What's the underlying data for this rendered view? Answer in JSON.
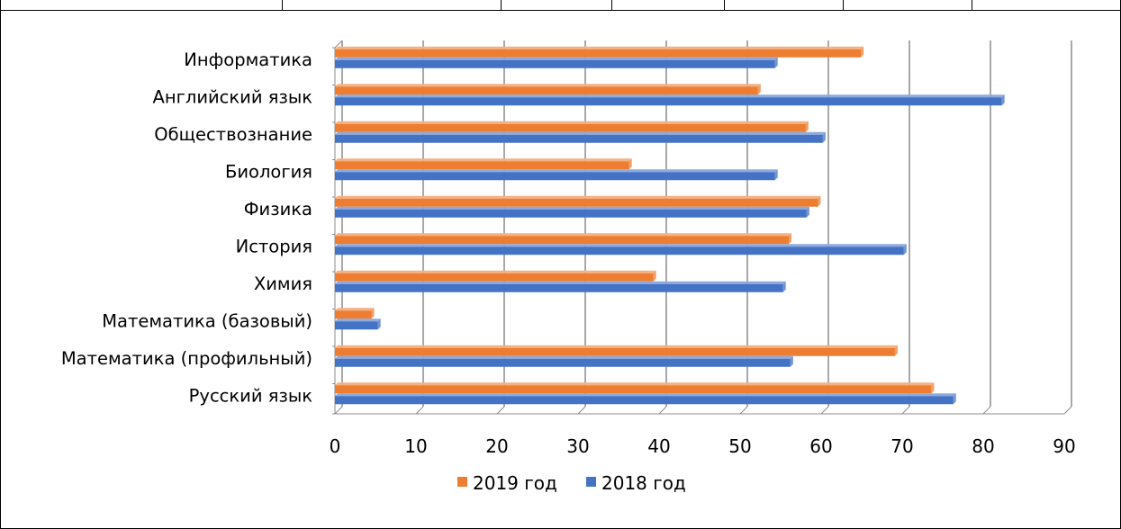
{
  "chart_data": {
    "type": "bar",
    "orientation": "horizontal",
    "categories": [
      "Русский язык",
      "Математика (профильный)",
      "Математика (базовый)",
      "Химия",
      "История",
      "Физика",
      "Биология",
      "Обществознание",
      "Английский язык",
      "Информатика"
    ],
    "series": [
      {
        "name": "2018 год",
        "color": "#4472c4",
        "values": [
          76.3,
          56.2,
          5.3,
          55.3,
          70.2,
          58.2,
          54.3,
          60.2,
          82.3,
          54.3
        ]
      },
      {
        "name": "2019 год",
        "color": "#ed7d31",
        "values": [
          73.6,
          69.1,
          4.5,
          39.3,
          56.0,
          59.6,
          36.3,
          58.1,
          52.2,
          64.9
        ]
      }
    ],
    "xticks": [
      "0",
      "10",
      "20",
      "30",
      "40",
      "50",
      "60",
      "70",
      "80",
      "90"
    ],
    "xlim": [
      0,
      90
    ],
    "grid": true,
    "legend": {
      "position": "bottom",
      "order": [
        "2019 год",
        "2018 год"
      ]
    },
    "title": "",
    "xlabel": "",
    "ylabel": ""
  }
}
